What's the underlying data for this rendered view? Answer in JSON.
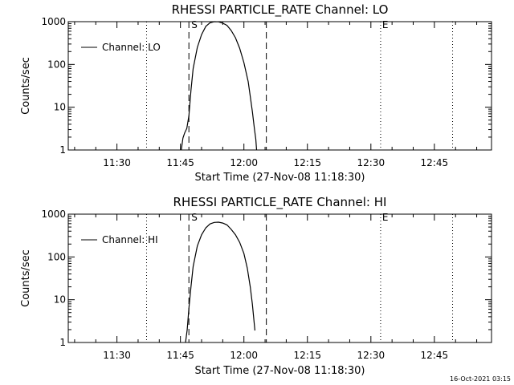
{
  "footer": {
    "timestamp": "16-Oct-2021 03:15"
  },
  "chart_data": [
    {
      "type": "line",
      "title": "RHESSI PARTICLE_RATE Channel: LO",
      "xlabel": "Start Time (27-Nov-08 11:18:30)",
      "ylabel": "Counts/sec",
      "yscale": "log",
      "ylim": [
        1,
        1000
      ],
      "xlim": [
        "11:18:30",
        "12:58:30"
      ],
      "y_ticks": [
        "1",
        "10",
        "100",
        "1000"
      ],
      "x_ticks": [
        {
          "t": 30,
          "label": "11:30"
        },
        {
          "t": 45,
          "label": "11:45"
        },
        {
          "t": 60,
          "label": "12:00"
        },
        {
          "t": 75,
          "label": "12:15"
        },
        {
          "t": 90,
          "label": "12:30"
        },
        {
          "t": 105,
          "label": "12:45"
        }
      ],
      "legend": {
        "entry": "Channel: LO",
        "position": "top-left"
      },
      "markers": [
        {
          "label": "S",
          "t": 47.0
        },
        {
          "label": "E",
          "t": 92.3
        }
      ],
      "dashed_lines": [
        47.0,
        65.3
      ],
      "dotted_lines": [
        37.0,
        92.3,
        109.3
      ],
      "series": [
        {
          "name": "Channel: LO",
          "t": [
            45.2,
            45.6,
            46.0,
            46.5,
            47.0,
            47.5,
            48.0,
            49.0,
            50.0,
            51.0,
            52.0,
            53.0,
            54.0,
            55.0,
            56.0,
            57.0,
            58.0,
            59.0,
            60.0,
            61.0,
            61.5,
            62.0,
            62.5,
            62.8,
            63.0
          ],
          "values": [
            1.0,
            1.9,
            2.5,
            3.2,
            6.3,
            25,
            80,
            250,
            500,
            780,
            940,
            1000,
            990,
            920,
            820,
            620,
            420,
            240,
            110,
            40,
            18,
            8,
            3,
            1.8,
            1.0
          ]
        }
      ]
    },
    {
      "type": "line",
      "title": "RHESSI PARTICLE_RATE Channel: HI",
      "xlabel": "Start Time (27-Nov-08 11:18:30)",
      "ylabel": "Counts/sec",
      "yscale": "log",
      "ylim": [
        1,
        1000
      ],
      "xlim": [
        "11:18:30",
        "12:58:30"
      ],
      "y_ticks": [
        "1",
        "10",
        "100",
        "1000"
      ],
      "x_ticks": [
        {
          "t": 30,
          "label": "11:30"
        },
        {
          "t": 45,
          "label": "11:45"
        },
        {
          "t": 60,
          "label": "12:00"
        },
        {
          "t": 75,
          "label": "12:15"
        },
        {
          "t": 90,
          "label": "12:30"
        },
        {
          "t": 105,
          "label": "12:45"
        }
      ],
      "legend": {
        "entry": "Channel: HI",
        "position": "top-left"
      },
      "markers": [
        {
          "label": "S",
          "t": 47.0
        },
        {
          "label": "E",
          "t": 92.3
        }
      ],
      "dashed_lines": [
        47.0,
        65.3
      ],
      "dotted_lines": [
        37.0,
        92.3,
        109.3
      ],
      "series": [
        {
          "name": "Channel: HI",
          "t": [
            46.2,
            46.6,
            47.0,
            47.5,
            48.0,
            49.0,
            50.0,
            51.0,
            52.0,
            53.0,
            54.0,
            55.0,
            56.0,
            57.0,
            58.0,
            59.0,
            60.0,
            60.8,
            61.5,
            62.0,
            62.6
          ],
          "values": [
            1.0,
            2.0,
            6.3,
            20,
            60,
            180,
            330,
            480,
            590,
            640,
            650,
            620,
            560,
            440,
            330,
            220,
            120,
            55,
            20,
            8,
            1.9
          ]
        }
      ]
    }
  ]
}
